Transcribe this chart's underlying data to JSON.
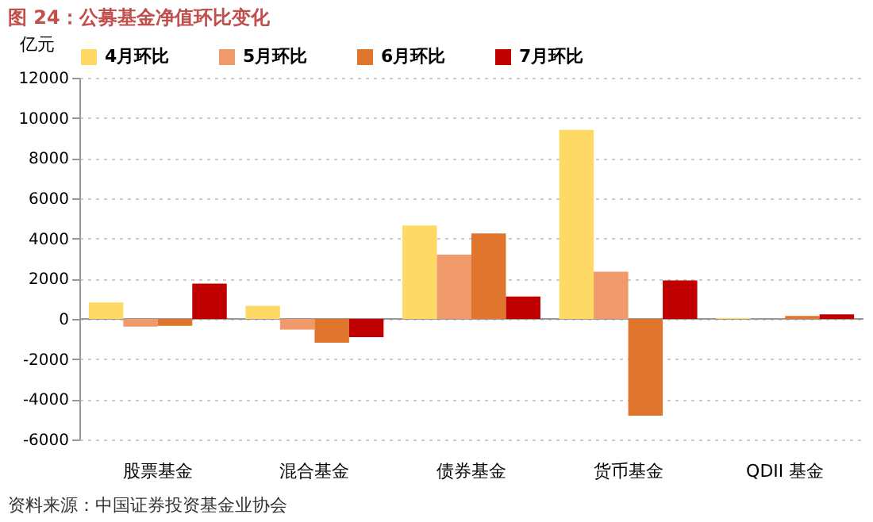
{
  "chart_data": {
    "type": "bar",
    "title": "图 24：公募基金净值环比变化",
    "ylabel": "亿元",
    "categories": [
      "股票基金",
      "混合基金",
      "债券基金",
      "货币基金",
      "QDII 基金"
    ],
    "series": [
      {
        "name": "4月环比",
        "color": "#ffd966",
        "values": [
          820,
          650,
          4650,
          9400,
          50
        ]
      },
      {
        "name": "5月环比",
        "color": "#f0996b",
        "values": [
          -380,
          -530,
          3200,
          2350,
          0
        ]
      },
      {
        "name": "6月环比",
        "color": "#e0762e",
        "values": [
          -350,
          -1180,
          4250,
          -4820,
          150
        ]
      },
      {
        "name": "7月环比",
        "color": "#c00000",
        "values": [
          1760,
          -910,
          1120,
          1910,
          230
        ]
      }
    ],
    "ylim": [
      -6000,
      12000
    ],
    "yticks": [
      -6000,
      -4000,
      -2000,
      0,
      2000,
      4000,
      6000,
      8000,
      10000,
      12000
    ],
    "grid": "y",
    "legend": "top",
    "annotations": [
      "资料来源：中国证券投资基金业协会"
    ]
  }
}
